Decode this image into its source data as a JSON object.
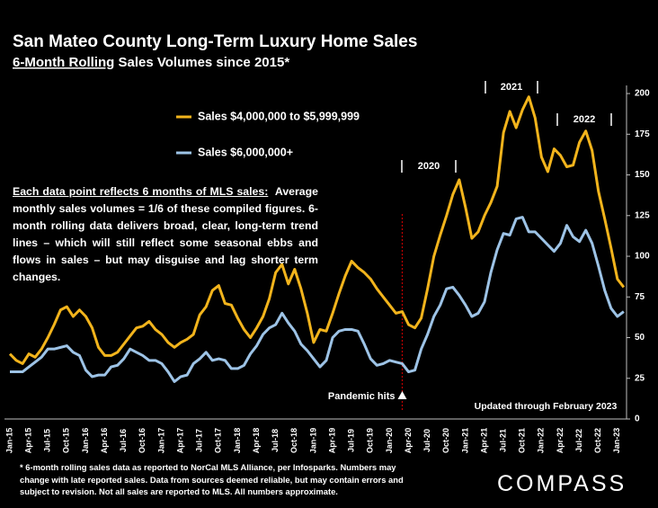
{
  "chart_data": {
    "type": "line",
    "title": "San Mateo County Long-Term Luxury Home Sales",
    "subtitle_underlined": "6-Month Rolling",
    "subtitle_rest": " Sales Volumes since 2015*",
    "note_underlined": "Each data point reflects 6 months of MLS sales:",
    "note_rest": "  Average monthly sales volumes = 1/6 of these compiled figures. 6-month rolling data delivers broad, clear, long-term trend lines – which will still reflect some seasonal ebbs and flows in sales – but may disguise and lag shorter term changes.",
    "footnote": "* 6-month rolling sales data as reported to NorCal MLS Alliance, per Infosparks. Numbers may change with late reported sales. Data from sources deemed reliable, but may contain errors and subject to revision. Not all sales are reported to MLS. All numbers approximate.",
    "brand": "COMPASS",
    "pandemic_label": "Pandemic hits",
    "updated_label": "Updated through February 2023",
    "annotations": [
      "2020",
      "2021",
      "2022"
    ],
    "categories": [
      "Jan-15",
      null,
      null,
      "Apr-15",
      null,
      null,
      "Jul-15",
      null,
      null,
      "Oct-15",
      null,
      null,
      "Jan-16",
      null,
      null,
      "Apr-16",
      null,
      null,
      "Jul-16",
      null,
      null,
      "Oct-16",
      null,
      null,
      "Jan-17",
      null,
      null,
      "Apr-17",
      null,
      null,
      "Jul-17",
      null,
      null,
      "Oct-17",
      null,
      null,
      "Jan-18",
      null,
      null,
      "Apr-18",
      null,
      null,
      "Jul-18",
      null,
      null,
      "Oct-18",
      null,
      null,
      "Jan-19",
      null,
      null,
      "Apr-19",
      null,
      null,
      "Jul-19",
      null,
      null,
      "Oct-19",
      null,
      null,
      "Jan-20",
      null,
      null,
      "Apr-20",
      null,
      null,
      "Jul-20",
      null,
      null,
      "Oct-20",
      null,
      null,
      "Jan-21",
      null,
      null,
      "Apr-21",
      null,
      null,
      "Jul-21",
      null,
      null,
      "Oct-21",
      null,
      null,
      "Jan-22",
      null,
      null,
      "Apr-22",
      null,
      null,
      "Jul-22",
      null,
      null,
      "Oct-22",
      null,
      null,
      "Jan-23",
      null
    ],
    "series": [
      {
        "name": "Sales $4,000,000 to $5,999,999",
        "color": "#f2b41c",
        "values": [
          40,
          36,
          34,
          40,
          38,
          43,
          50,
          58,
          67,
          69,
          63,
          67,
          63,
          56,
          44,
          39,
          39,
          41,
          46,
          51,
          56,
          57,
          60,
          55,
          52,
          47,
          44,
          47,
          49,
          52,
          64,
          69,
          79,
          82,
          71,
          70,
          62,
          55,
          50,
          56,
          63,
          74,
          90,
          95,
          83,
          92,
          80,
          65,
          47,
          55,
          54,
          65,
          77,
          88,
          97,
          93,
          90,
          86,
          80,
          75,
          70,
          65,
          66,
          58,
          56,
          62,
          80,
          100,
          113,
          125,
          138,
          147,
          130,
          111,
          115,
          125,
          133,
          143,
          176,
          189,
          179,
          190,
          198,
          185,
          161,
          152,
          166,
          162,
          155,
          156,
          170,
          177,
          165,
          140,
          123,
          105,
          86,
          81
        ]
      },
      {
        "name": "Sales $6,000,000+",
        "color": "#9dc3e6",
        "values": [
          29,
          29,
          29,
          32,
          35,
          38,
          43,
          43,
          44,
          45,
          41,
          39,
          30,
          26,
          27,
          27,
          32,
          33,
          37,
          43,
          41,
          39,
          36,
          36,
          34,
          29,
          23,
          26,
          27,
          34,
          37,
          41,
          36,
          37,
          36,
          31,
          31,
          33,
          40,
          45,
          52,
          56,
          58,
          65,
          59,
          54,
          46,
          42,
          37,
          32,
          36,
          50,
          54,
          55,
          55,
          54,
          46,
          37,
          33,
          34,
          36,
          35,
          34,
          29,
          30,
          43,
          52,
          63,
          70,
          80,
          81,
          76,
          70,
          63,
          65,
          72,
          90,
          104,
          114,
          113,
          123,
          124,
          115,
          115,
          111,
          107,
          103,
          108,
          119,
          112,
          109,
          116,
          108,
          94,
          79,
          68,
          63,
          66
        ]
      }
    ],
    "ylim": [
      0,
      205
    ],
    "yticks": [
      0,
      25,
      50,
      75,
      100,
      125,
      150,
      175,
      200
    ]
  }
}
